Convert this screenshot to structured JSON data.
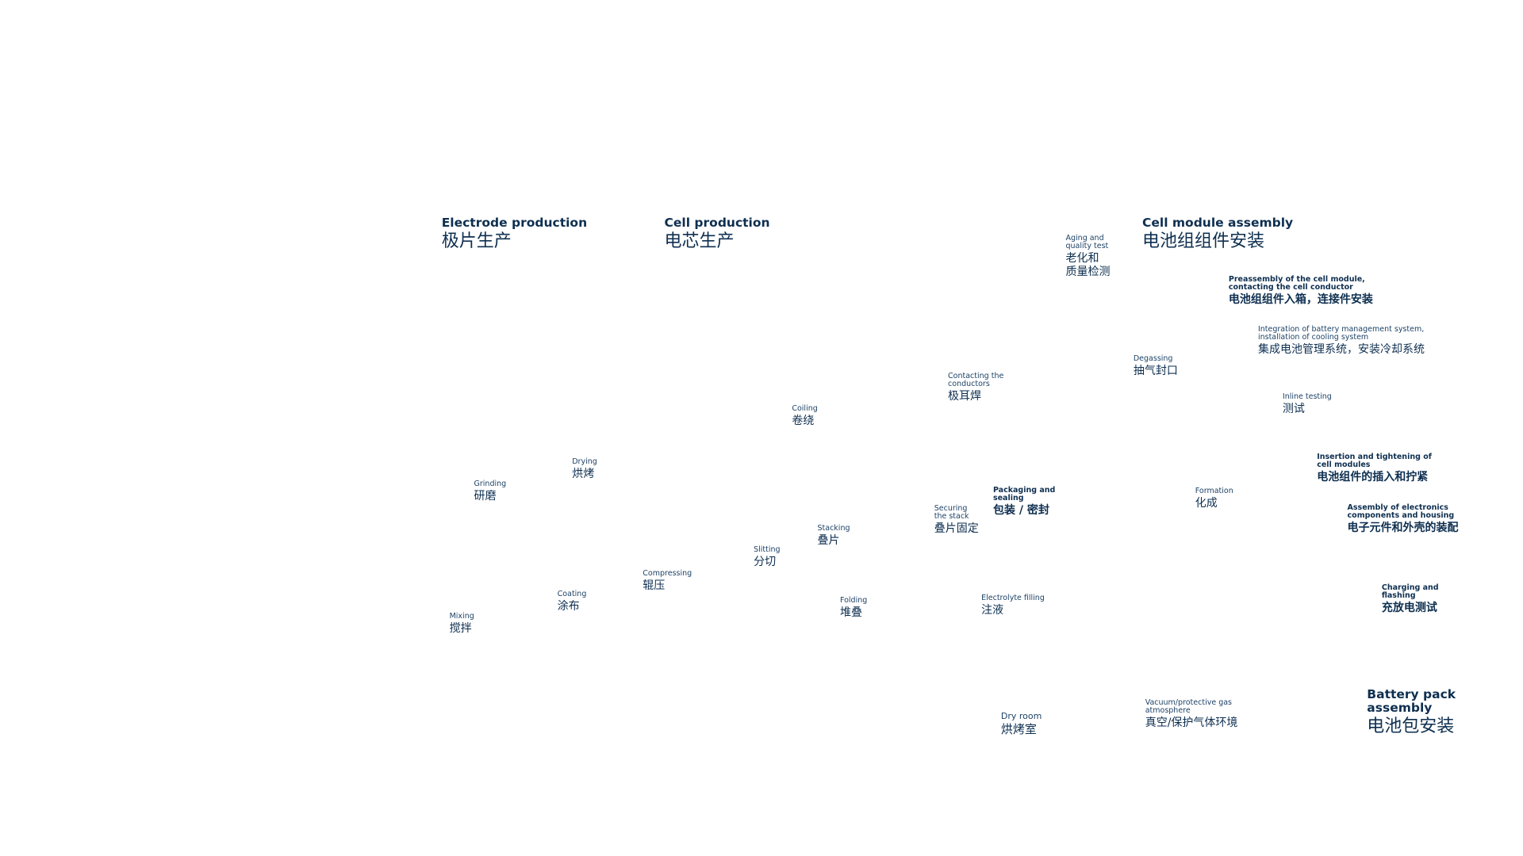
{
  "sections": [
    {
      "en": "Electrode production",
      "zh": "极片生产"
    },
    {
      "en": "Cell production",
      "zh": "电芯生产"
    },
    {
      "en": "Cell module assembly",
      "zh": "电池组组件安装"
    },
    {
      "en": "Battery pack\nassembly",
      "zh": "电池包安装"
    }
  ],
  "steps": [
    {
      "en": "Mixing",
      "zh": "搅拌"
    },
    {
      "en": "Grinding",
      "zh": "研磨"
    },
    {
      "en": "Coating",
      "zh": "涂布"
    },
    {
      "en": "Drying",
      "zh": "烘烤"
    },
    {
      "en": "Compressing",
      "zh": "辊压"
    },
    {
      "en": "Slitting",
      "zh": "分切"
    },
    {
      "en": "Coiling",
      "zh": "卷绕"
    },
    {
      "en": "Stacking",
      "zh": "叠片"
    },
    {
      "en": "Folding",
      "zh": "堆叠"
    },
    {
      "en": "Contacting the\nconductors",
      "zh": "极耳焊"
    },
    {
      "en": "Securing\nthe stack",
      "zh": "叠片固定"
    },
    {
      "en": "Packaging and\nsealing",
      "zh": "包装 / 密封"
    },
    {
      "en": "Electrolyte filling",
      "zh": "注液"
    },
    {
      "en": "Aging and\nquality test",
      "zh": "老化和\n质量检测"
    },
    {
      "en": "Degassing",
      "zh": "抽气封口"
    },
    {
      "en": "Formation",
      "zh": "化成"
    },
    {
      "en": "Dry room",
      "zh": "烘烤室"
    },
    {
      "en": "Vacuum/protective gas\natmosphere",
      "zh": "真空/保护气体环境"
    },
    {
      "en": "Preassembly of the cell module,\ncontacting the cell conductor",
      "zh": "电池组组件入箱，连接件安装"
    },
    {
      "en": "Integration of battery management system,\ninstallation of cooling system",
      "zh": "集成电池管理系统，安装冷却系统"
    },
    {
      "en": "Inline testing",
      "zh": "测试"
    },
    {
      "en": "Insertion and tightening of\ncell modules",
      "zh": "电池组件的插入和拧紧"
    },
    {
      "en": "Assembly of electronics\ncomponents and housing",
      "zh": "电子元件和外壳的装配"
    },
    {
      "en": "Charging and\nflashing",
      "zh": "充放电测试"
    }
  ]
}
